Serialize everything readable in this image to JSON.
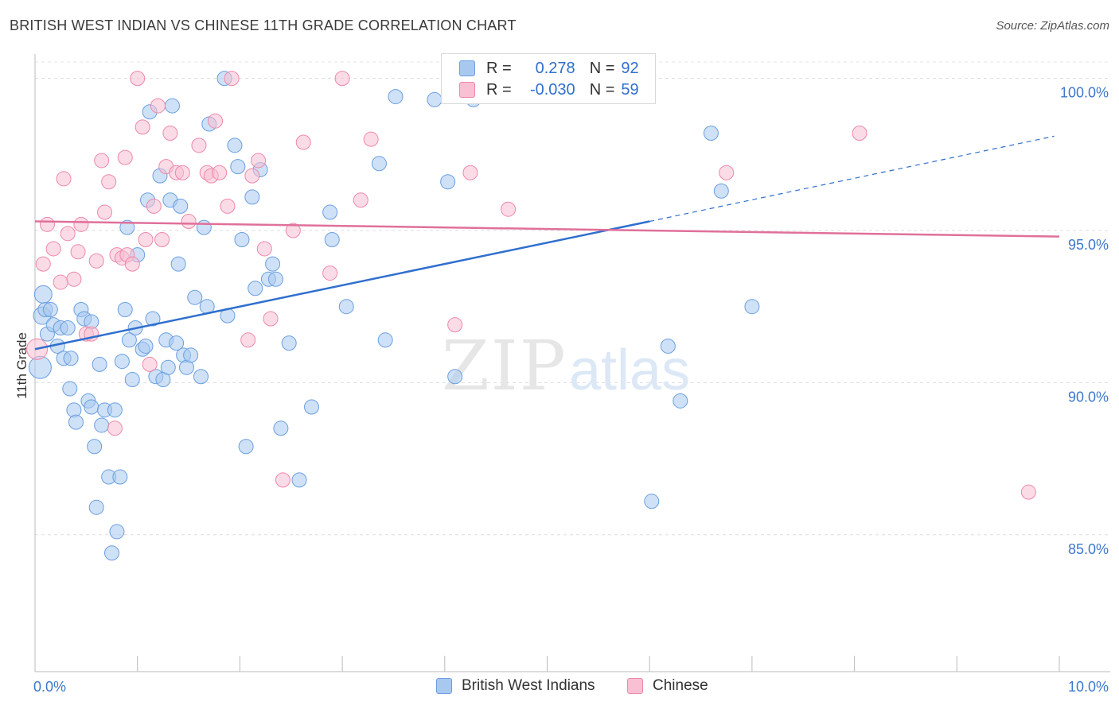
{
  "header": {
    "title": "BRITISH WEST INDIAN VS CHINESE 11TH GRADE CORRELATION CHART",
    "source": "Source: ZipAtlas.com"
  },
  "watermark": {
    "zip": "ZIP",
    "atlas": "atlas"
  },
  "legend_top": {
    "rows": [
      {
        "r_label": "R =",
        "r_value": "0.278",
        "n_label": "N =",
        "n_value": "92",
        "color": "#a8c8f0",
        "border": "#6a9fe0"
      },
      {
        "r_label": "R =",
        "r_value": "-0.030",
        "n_label": "N =",
        "n_value": "59",
        "color": "#f8c0d2",
        "border": "#ee88a8"
      }
    ]
  },
  "legend_bottom": {
    "items": [
      {
        "label": "British West Indians",
        "color": "#a8c8f0",
        "border": "#6a9fe0"
      },
      {
        "label": "Chinese",
        "color": "#f8c0d2",
        "border": "#ee88a8"
      }
    ]
  },
  "chart_data": {
    "type": "scatter",
    "title": "BRITISH WEST INDIAN VS CHINESE 11TH GRADE CORRELATION CHART",
    "xlabel": "",
    "ylabel": "11th Grade",
    "xlim": [
      0,
      10
    ],
    "ylim": [
      80.5,
      100.8
    ],
    "x_tick_labels": [
      {
        "value": 0,
        "label": "0.0%"
      },
      {
        "value": 10,
        "label": "10.0%"
      }
    ],
    "y_tick_labels": [
      {
        "value": 100,
        "label": "100.0%"
      },
      {
        "value": 95,
        "label": "95.0%"
      },
      {
        "value": 90,
        "label": "90.0%"
      },
      {
        "value": 85,
        "label": "85.0%"
      }
    ],
    "grid": true,
    "legend_position": "top-center",
    "series": [
      {
        "name": "British West Indians",
        "color": "#a8c8f0",
        "stroke": "#6a9fe0",
        "trend": {
          "x0": 0,
          "y0": 91.1,
          "x1": 6.0,
          "y1": 95.3,
          "dash_to_x": 9.95,
          "dash_to_y": 98.1
        },
        "points": [
          [
            0.05,
            90.5
          ],
          [
            0.07,
            92.2
          ],
          [
            0.08,
            92.9
          ],
          [
            0.1,
            92.4
          ],
          [
            0.12,
            91.6
          ],
          [
            0.15,
            92.4
          ],
          [
            0.18,
            91.9
          ],
          [
            0.22,
            91.2
          ],
          [
            0.25,
            91.8
          ],
          [
            0.28,
            90.8
          ],
          [
            0.32,
            91.8
          ],
          [
            0.35,
            90.8
          ],
          [
            0.34,
            89.8
          ],
          [
            0.38,
            89.1
          ],
          [
            0.4,
            88.7
          ],
          [
            0.45,
            92.4
          ],
          [
            0.48,
            92.1
          ],
          [
            0.52,
            89.4
          ],
          [
            0.55,
            92.0
          ],
          [
            0.55,
            89.2
          ],
          [
            0.58,
            87.9
          ],
          [
            0.6,
            85.9
          ],
          [
            0.63,
            90.6
          ],
          [
            0.65,
            88.6
          ],
          [
            0.68,
            89.1
          ],
          [
            0.72,
            86.9
          ],
          [
            0.78,
            89.1
          ],
          [
            0.8,
            85.1
          ],
          [
            0.75,
            84.4
          ],
          [
            0.83,
            86.9
          ],
          [
            0.85,
            90.7
          ],
          [
            0.88,
            92.4
          ],
          [
            0.9,
            95.1
          ],
          [
            0.92,
            91.4
          ],
          [
            0.95,
            90.1
          ],
          [
            0.98,
            91.8
          ],
          [
            1.0,
            94.2
          ],
          [
            1.05,
            91.1
          ],
          [
            1.08,
            91.2
          ],
          [
            1.1,
            96.0
          ],
          [
            1.12,
            98.9
          ],
          [
            1.15,
            92.1
          ],
          [
            1.18,
            90.2
          ],
          [
            1.22,
            96.8
          ],
          [
            1.25,
            90.1
          ],
          [
            1.28,
            91.4
          ],
          [
            1.3,
            90.5
          ],
          [
            1.32,
            96.0
          ],
          [
            1.34,
            99.1
          ],
          [
            1.38,
            91.3
          ],
          [
            1.4,
            93.9
          ],
          [
            1.42,
            95.8
          ],
          [
            1.45,
            90.9
          ],
          [
            1.48,
            90.5
          ],
          [
            1.52,
            90.9
          ],
          [
            1.56,
            92.8
          ],
          [
            1.62,
            90.2
          ],
          [
            1.65,
            95.1
          ],
          [
            1.68,
            92.5
          ],
          [
            1.7,
            98.5
          ],
          [
            1.85,
            100.0
          ],
          [
            1.88,
            92.2
          ],
          [
            1.95,
            97.8
          ],
          [
            1.98,
            97.1
          ],
          [
            2.02,
            94.7
          ],
          [
            2.06,
            87.9
          ],
          [
            2.12,
            96.1
          ],
          [
            2.15,
            93.1
          ],
          [
            2.2,
            97.0
          ],
          [
            2.28,
            93.4
          ],
          [
            2.32,
            93.9
          ],
          [
            2.35,
            93.4
          ],
          [
            2.4,
            88.5
          ],
          [
            2.48,
            91.3
          ],
          [
            2.58,
            86.8
          ],
          [
            2.7,
            89.2
          ],
          [
            2.88,
            95.6
          ],
          [
            2.9,
            94.7
          ],
          [
            3.04,
            92.5
          ],
          [
            3.36,
            97.2
          ],
          [
            3.42,
            91.4
          ],
          [
            3.52,
            99.4
          ],
          [
            3.9,
            99.3
          ],
          [
            4.03,
            96.6
          ],
          [
            4.1,
            90.2
          ],
          [
            4.28,
            99.3
          ],
          [
            6.02,
            86.1
          ],
          [
            6.18,
            91.2
          ],
          [
            6.3,
            89.4
          ],
          [
            6.6,
            98.2
          ],
          [
            6.7,
            96.3
          ],
          [
            7.0,
            92.5
          ]
        ]
      },
      {
        "name": "Chinese",
        "color": "#f8c0d2",
        "stroke": "#ee88a8",
        "trend": {
          "x0": 0,
          "y0": 95.3,
          "x1": 10,
          "y1": 94.8
        },
        "points": [
          [
            0.02,
            91.1
          ],
          [
            0.08,
            93.9
          ],
          [
            0.12,
            95.2
          ],
          [
            0.18,
            94.4
          ],
          [
            0.25,
            93.3
          ],
          [
            0.28,
            96.7
          ],
          [
            0.32,
            94.9
          ],
          [
            0.38,
            93.4
          ],
          [
            0.42,
            94.3
          ],
          [
            0.45,
            95.2
          ],
          [
            0.5,
            91.6
          ],
          [
            0.55,
            91.6
          ],
          [
            0.6,
            94.0
          ],
          [
            0.65,
            97.3
          ],
          [
            0.68,
            95.6
          ],
          [
            0.72,
            96.6
          ],
          [
            0.78,
            88.5
          ],
          [
            0.8,
            94.2
          ],
          [
            0.85,
            94.1
          ],
          [
            0.88,
            97.4
          ],
          [
            0.9,
            94.2
          ],
          [
            0.95,
            93.9
          ],
          [
            1.0,
            100.0
          ],
          [
            1.05,
            98.4
          ],
          [
            1.08,
            94.7
          ],
          [
            1.12,
            90.6
          ],
          [
            1.16,
            95.8
          ],
          [
            1.2,
            99.1
          ],
          [
            1.24,
            94.7
          ],
          [
            1.28,
            97.1
          ],
          [
            1.32,
            98.2
          ],
          [
            1.38,
            96.9
          ],
          [
            1.44,
            96.9
          ],
          [
            1.5,
            95.3
          ],
          [
            1.6,
            97.8
          ],
          [
            1.68,
            96.9
          ],
          [
            1.72,
            96.8
          ],
          [
            1.76,
            98.6
          ],
          [
            1.8,
            96.9
          ],
          [
            1.88,
            95.8
          ],
          [
            1.92,
            100.0
          ],
          [
            2.08,
            91.4
          ],
          [
            2.12,
            96.8
          ],
          [
            2.18,
            97.3
          ],
          [
            2.24,
            94.4
          ],
          [
            2.3,
            92.1
          ],
          [
            2.42,
            86.8
          ],
          [
            2.52,
            95.0
          ],
          [
            2.62,
            97.9
          ],
          [
            2.88,
            93.6
          ],
          [
            3.0,
            100.0
          ],
          [
            3.18,
            96.0
          ],
          [
            3.28,
            98.0
          ],
          [
            4.1,
            91.9
          ],
          [
            4.25,
            96.9
          ],
          [
            4.62,
            95.7
          ],
          [
            6.75,
            96.9
          ],
          [
            8.05,
            98.2
          ],
          [
            9.7,
            86.4
          ]
        ]
      }
    ]
  }
}
